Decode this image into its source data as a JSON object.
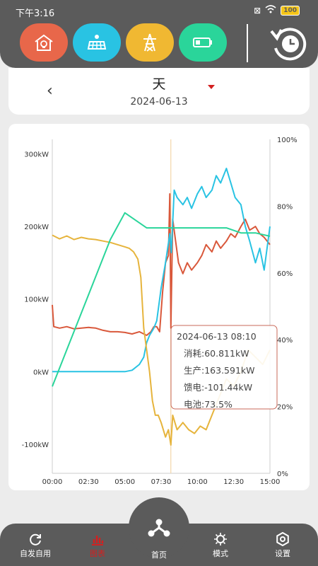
{
  "status_bar": {
    "time": "下午3:16",
    "battery": "100"
  },
  "mode_buttons": [
    {
      "icon": "house-bulb-icon",
      "color": "#e8674a"
    },
    {
      "icon": "solar-panel-icon",
      "color": "#29c3e3"
    },
    {
      "icon": "power-tower-icon",
      "color": "#f0b832"
    },
    {
      "icon": "battery-icon",
      "color": "#2ad59a"
    }
  ],
  "date_selector": {
    "period": "天",
    "date": "2024-06-13"
  },
  "tooltip": {
    "title": "2024-06-13 08:10",
    "lines": [
      "消耗:60.811kW",
      "生产:163.591kW",
      "馈电:-101.44kW",
      "电池:73.5%"
    ]
  },
  "chart_data": {
    "type": "line",
    "x_unit": "time",
    "xlabels": [
      "00:00",
      "02:30",
      "05:00",
      "07:30",
      "10:00",
      "12:30",
      "15:00"
    ],
    "xlim": [
      0,
      15
    ],
    "left_axis": {
      "labels": [
        "300kW",
        "200kW",
        "100kW",
        "0kW",
        "-100kW"
      ],
      "ylim": [
        -140,
        320
      ]
    },
    "right_axis": {
      "labels": [
        "100%",
        "80%",
        "60%",
        "40%",
        "20%",
        "0%"
      ],
      "ylim": [
        0,
        100
      ]
    },
    "cursor_x": 8.17,
    "series": [
      {
        "color": "#d9583b",
        "axis": "left",
        "points": [
          [
            0,
            92
          ],
          [
            0.1,
            62
          ],
          [
            0.5,
            60
          ],
          [
            1,
            62
          ],
          [
            1.5,
            59
          ],
          [
            2,
            60
          ],
          [
            2.5,
            61
          ],
          [
            3,
            60
          ],
          [
            3.5,
            57
          ],
          [
            4,
            55
          ],
          [
            4.5,
            55
          ],
          [
            5,
            54
          ],
          [
            5.5,
            52
          ],
          [
            6,
            55
          ],
          [
            6.5,
            50
          ],
          [
            6.8,
            55
          ],
          [
            7,
            62
          ],
          [
            7.2,
            62
          ],
          [
            7.4,
            55
          ],
          [
            7.6,
            110
          ],
          [
            7.8,
            150
          ],
          [
            8,
            160
          ],
          [
            8.1,
            245
          ],
          [
            8.17,
            60
          ],
          [
            8.3,
            210
          ],
          [
            8.5,
            180
          ],
          [
            8.7,
            150
          ],
          [
            9,
            135
          ],
          [
            9.3,
            150
          ],
          [
            9.6,
            140
          ],
          [
            10,
            150
          ],
          [
            10.3,
            160
          ],
          [
            10.6,
            175
          ],
          [
            11,
            165
          ],
          [
            11.3,
            180
          ],
          [
            11.6,
            170
          ],
          [
            12,
            180
          ],
          [
            12.3,
            190
          ],
          [
            12.6,
            185
          ],
          [
            13,
            200
          ],
          [
            13.3,
            210
          ],
          [
            13.6,
            195
          ],
          [
            14,
            200
          ],
          [
            14.3,
            190
          ],
          [
            14.6,
            185
          ],
          [
            15,
            175
          ]
        ]
      },
      {
        "color": "#29c3e3",
        "axis": "left",
        "points": [
          [
            0,
            0
          ],
          [
            5,
            0
          ],
          [
            5.5,
            2
          ],
          [
            6,
            10
          ],
          [
            6.3,
            20
          ],
          [
            6.5,
            40
          ],
          [
            6.7,
            50
          ],
          [
            7,
            60
          ],
          [
            7.2,
            70
          ],
          [
            7.5,
            115
          ],
          [
            7.8,
            150
          ],
          [
            8.1,
            190
          ],
          [
            8.2,
            164
          ],
          [
            8.4,
            250
          ],
          [
            8.6,
            240
          ],
          [
            9,
            230
          ],
          [
            9.3,
            240
          ],
          [
            9.6,
            225
          ],
          [
            10,
            245
          ],
          [
            10.3,
            255
          ],
          [
            10.6,
            240
          ],
          [
            11,
            250
          ],
          [
            11.3,
            270
          ],
          [
            11.6,
            260
          ],
          [
            12,
            280
          ],
          [
            12.3,
            260
          ],
          [
            12.6,
            240
          ],
          [
            13,
            230
          ],
          [
            13.3,
            200
          ],
          [
            13.6,
            180
          ],
          [
            14,
            150
          ],
          [
            14.3,
            170
          ],
          [
            14.6,
            140
          ],
          [
            15,
            200
          ]
        ]
      },
      {
        "color": "#e6b43c",
        "axis": "left",
        "points": [
          [
            0,
            188
          ],
          [
            0.5,
            183
          ],
          [
            1,
            187
          ],
          [
            1.5,
            182
          ],
          [
            2,
            185
          ],
          [
            2.5,
            183
          ],
          [
            3,
            182
          ],
          [
            3.5,
            180
          ],
          [
            4,
            178
          ],
          [
            4.5,
            175
          ],
          [
            5,
            172
          ],
          [
            5.3,
            170
          ],
          [
            5.6,
            165
          ],
          [
            5.9,
            155
          ],
          [
            6.1,
            130
          ],
          [
            6.3,
            60
          ],
          [
            6.5,
            30
          ],
          [
            6.7,
            0
          ],
          [
            6.9,
            -40
          ],
          [
            7.1,
            -60
          ],
          [
            7.3,
            -60
          ],
          [
            7.5,
            -70
          ],
          [
            7.8,
            -90
          ],
          [
            8,
            -80
          ],
          [
            8.17,
            -101
          ],
          [
            8.3,
            -60
          ],
          [
            8.6,
            -80
          ],
          [
            9,
            -70
          ],
          [
            9.4,
            -80
          ],
          [
            9.8,
            -85
          ],
          [
            10.2,
            -75
          ],
          [
            10.6,
            -80
          ],
          [
            11,
            -60
          ],
          [
            11.4,
            -40
          ],
          [
            11.8,
            -20
          ],
          [
            12,
            -10
          ],
          [
            12.5,
            -20
          ],
          [
            13,
            0
          ],
          [
            13.5,
            30
          ],
          [
            14,
            20
          ],
          [
            14.5,
            10
          ],
          [
            15,
            30
          ]
        ]
      },
      {
        "color": "#2ad59a",
        "axis": "right",
        "points": [
          [
            0,
            26
          ],
          [
            1,
            37
          ],
          [
            2,
            48
          ],
          [
            3,
            59
          ],
          [
            4,
            70
          ],
          [
            5,
            78
          ],
          [
            6.5,
            73.5
          ],
          [
            8.17,
            73.5
          ],
          [
            10,
            73.5
          ],
          [
            12,
            73.5
          ],
          [
            13,
            72
          ],
          [
            14,
            72
          ],
          [
            15,
            71
          ]
        ]
      }
    ]
  },
  "bottom_nav": [
    {
      "label": "自发自用",
      "icon": "refresh-icon"
    },
    {
      "label": "图表",
      "icon": "chart-icon",
      "active": true
    },
    {
      "label": "首页",
      "icon": "home-hub-icon"
    },
    {
      "label": "模式",
      "icon": "mode-icon"
    },
    {
      "label": "设置",
      "icon": "settings-icon"
    }
  ]
}
